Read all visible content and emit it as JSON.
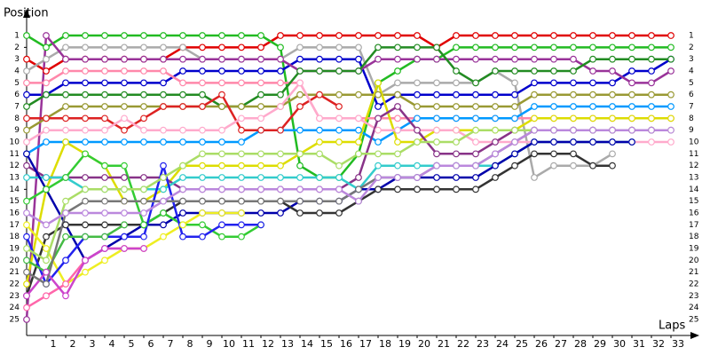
{
  "chart_data": {
    "type": "line",
    "y_label": "Position",
    "x_label": "Laps",
    "x": [
      0,
      1,
      2,
      3,
      4,
      5,
      6,
      7,
      8,
      9,
      10,
      11,
      12,
      13,
      14,
      15,
      16,
      17,
      18,
      19,
      20,
      21,
      22,
      23,
      24,
      25,
      26,
      27,
      28,
      29,
      30,
      31,
      32,
      33
    ],
    "xlim": [
      0,
      34
    ],
    "xticks": [
      1,
      2,
      3,
      4,
      5,
      6,
      7,
      8,
      9,
      10,
      11,
      12,
      13,
      14,
      15,
      16,
      17,
      18,
      19,
      20,
      21,
      22,
      23,
      24,
      25,
      26,
      27,
      28,
      29,
      30,
      31,
      32,
      33
    ],
    "ylim": [
      26,
      0
    ],
    "yticks": [
      1,
      2,
      3,
      4,
      5,
      6,
      7,
      8,
      9,
      10,
      11,
      12,
      13,
      14,
      15,
      16,
      17,
      18,
      19,
      20,
      21,
      22,
      23,
      24,
      25
    ],
    "series": [
      {
        "color": "#e00000",
        "values": [
          3,
          4,
          3,
          3,
          3,
          3,
          3,
          3,
          2,
          2,
          2,
          2,
          2,
          1,
          1,
          1,
          1,
          1,
          1,
          1,
          1,
          2,
          1,
          1,
          1,
          1,
          1,
          1,
          1,
          1,
          1,
          1,
          1,
          1
        ]
      },
      {
        "color": "#22bb22",
        "values": [
          1,
          2,
          1,
          1,
          1,
          1,
          1,
          1,
          1,
          1,
          1,
          1,
          1,
          2,
          12,
          13,
          13,
          11,
          5,
          4,
          3,
          3,
          2,
          2,
          2,
          2,
          2,
          2,
          2,
          2,
          2,
          2,
          2,
          2
        ]
      },
      {
        "color": "#aaaaaa",
        "values": [
          4,
          3,
          2,
          2,
          2,
          2,
          2,
          2,
          2,
          3,
          3,
          3,
          3,
          3,
          2,
          2,
          2,
          2,
          6,
          5,
          5,
          5,
          5,
          5,
          4,
          5,
          13,
          12,
          12,
          12,
          11,
          null,
          null,
          null
        ]
      },
      {
        "color": "#0000cc",
        "values": [
          6,
          6,
          5,
          5,
          5,
          5,
          5,
          5,
          4,
          4,
          4,
          4,
          4,
          4,
          3,
          3,
          3,
          3,
          7,
          6,
          6,
          6,
          6,
          6,
          6,
          6,
          5,
          5,
          5,
          5,
          5,
          4,
          4,
          3
        ]
      },
      {
        "color": "#993399",
        "values": [
          25,
          1,
          3,
          3,
          3,
          3,
          3,
          3,
          3,
          3,
          3,
          3,
          3,
          3,
          4,
          4,
          4,
          4,
          3,
          3,
          3,
          3,
          3,
          3,
          3,
          3,
          3,
          3,
          3,
          4,
          4,
          5,
          5,
          4
        ]
      },
      {
        "color": "#ff88aa",
        "values": [
          5,
          5,
          4,
          4,
          4,
          4,
          4,
          4,
          5,
          5,
          5,
          5,
          5,
          5,
          5,
          8,
          8,
          8,
          8,
          8,
          8,
          8,
          8,
          8,
          8,
          8,
          8,
          8,
          8,
          8,
          8,
          8,
          8,
          8
        ]
      },
      {
        "color": "#228b22",
        "values": [
          7,
          6,
          6,
          6,
          6,
          6,
          6,
          6,
          6,
          6,
          7,
          7,
          6,
          6,
          4,
          4,
          4,
          4,
          2,
          2,
          2,
          2,
          4,
          5,
          4,
          4,
          4,
          4,
          4,
          3,
          3,
          3,
          3,
          3
        ]
      },
      {
        "color": "#999933",
        "values": [
          9,
          8,
          7,
          7,
          7,
          7,
          7,
          7,
          7,
          7,
          7,
          7,
          7,
          7,
          6,
          6,
          6,
          6,
          6,
          6,
          7,
          7,
          7,
          7,
          7,
          7,
          6,
          6,
          6,
          6,
          6,
          6,
          6,
          6
        ]
      },
      {
        "color": "#0099ff",
        "values": [
          11,
          10,
          10,
          10,
          10,
          10,
          10,
          10,
          10,
          10,
          10,
          10,
          9,
          9,
          9,
          9,
          9,
          9,
          10,
          9,
          8,
          8,
          8,
          8,
          8,
          8,
          7,
          7,
          7,
          7,
          7,
          7,
          7,
          7
        ]
      },
      {
        "color": "#dddd00",
        "values": [
          22,
          14,
          10,
          11,
          12,
          15,
          15,
          14,
          12,
          12,
          12,
          12,
          12,
          12,
          11,
          10,
          10,
          10,
          5,
          10,
          10,
          9,
          9,
          9,
          9,
          9,
          8,
          8,
          8,
          8,
          8,
          8,
          8,
          8
        ]
      },
      {
        "color": "#dd2222",
        "values": [
          8,
          8,
          8,
          8,
          8,
          9,
          8,
          7,
          7,
          7,
          6,
          9,
          9,
          9,
          7,
          6,
          7,
          null,
          null,
          null,
          null,
          null,
          null,
          null,
          null,
          null,
          null,
          null,
          null,
          null,
          null,
          null,
          null,
          null
        ]
      },
      {
        "color": "#ffaacc",
        "values": [
          10,
          9,
          9,
          9,
          9,
          8,
          9,
          9,
          9,
          9,
          9,
          8,
          8,
          7,
          5,
          8,
          8,
          8,
          9,
          9,
          9,
          9,
          9,
          10,
          10,
          10,
          10,
          10,
          10,
          10,
          10,
          10,
          10,
          10
        ]
      },
      {
        "color": "#883388",
        "values": [
          12,
          13,
          13,
          13,
          13,
          13,
          13,
          13,
          14,
          14,
          14,
          14,
          14,
          14,
          14,
          14,
          14,
          13,
          8,
          7,
          9,
          11,
          11,
          11,
          10,
          9,
          9,
          9,
          9,
          9,
          9,
          9,
          9,
          null
        ]
      },
      {
        "color": "#33cccc",
        "values": [
          13,
          13,
          13,
          14,
          14,
          14,
          14,
          14,
          13,
          13,
          13,
          13,
          13,
          13,
          13,
          13,
          13,
          14,
          12,
          12,
          12,
          12,
          12,
          12,
          12,
          11,
          10,
          10,
          10,
          10,
          10,
          10,
          null,
          null
        ]
      },
      {
        "color": "#0000aa",
        "values": [
          11,
          14,
          17,
          20,
          19,
          18,
          17,
          17,
          16,
          16,
          16,
          16,
          16,
          16,
          15,
          15,
          15,
          14,
          14,
          13,
          13,
          13,
          13,
          13,
          12,
          11,
          10,
          10,
          10,
          10,
          10,
          10,
          null,
          null
        ]
      },
      {
        "color": "#333333",
        "values": [
          23,
          18,
          17,
          17,
          17,
          17,
          17,
          16,
          15,
          15,
          15,
          15,
          15,
          15,
          16,
          16,
          16,
          15,
          14,
          14,
          14,
          14,
          14,
          14,
          13,
          12,
          11,
          11,
          11,
          12,
          12,
          null,
          null,
          null
        ]
      },
      {
        "color": "#33cc33",
        "values": [
          15,
          14,
          13,
          11,
          12,
          12,
          17,
          16,
          17,
          17,
          18,
          18,
          17,
          null,
          null,
          null,
          null,
          null,
          null,
          null,
          null,
          null,
          null,
          null,
          null,
          null,
          null,
          null,
          null,
          null,
          null,
          null,
          null,
          null
        ]
      },
      {
        "color": "#eeee22",
        "values": [
          17,
          19,
          22,
          21,
          20,
          19,
          19,
          18,
          17,
          16,
          16,
          16,
          null,
          null,
          null,
          null,
          null,
          null,
          null,
          null,
          null,
          null,
          null,
          null,
          null,
          null,
          null,
          null,
          null,
          null,
          null,
          null,
          null,
          null
        ]
      },
      {
        "color": "#2222ee",
        "values": [
          18,
          22,
          20,
          18,
          18,
          18,
          18,
          12,
          18,
          18,
          17,
          17,
          17,
          null,
          null,
          null,
          null,
          null,
          null,
          null,
          null,
          null,
          null,
          null,
          null,
          null,
          null,
          null,
          null,
          null,
          null,
          null,
          null,
          null
        ]
      },
      {
        "color": "#ff66aa",
        "values": [
          24,
          23,
          22,
          20,
          19,
          19,
          19,
          null,
          null,
          null,
          null,
          null,
          null,
          null,
          null,
          null,
          null,
          null,
          null,
          null,
          null,
          null,
          null,
          null,
          null,
          null,
          null,
          null,
          null,
          null,
          null,
          null,
          null,
          null
        ]
      },
      {
        "color": "#aadd66",
        "values": [
          19,
          20,
          15,
          14,
          14,
          14,
          14,
          13,
          12,
          11,
          11,
          11,
          11,
          11,
          11,
          11,
          12,
          11,
          11,
          11,
          10,
          10,
          10,
          9,
          9,
          9,
          9,
          9,
          9,
          9,
          9,
          9,
          9,
          9
        ]
      },
      {
        "color": "#44bb44",
        "values": [
          20,
          21,
          18,
          18,
          18,
          17,
          null,
          null,
          null,
          null,
          null,
          null,
          null,
          null,
          null,
          null,
          null,
          null,
          null,
          null,
          null,
          null,
          null,
          null,
          null,
          null,
          null,
          null,
          null,
          null,
          null,
          null,
          null,
          null
        ]
      },
      {
        "color": "#cc44cc",
        "values": [
          23,
          21,
          23,
          20,
          19,
          19,
          19,
          null,
          null,
          null,
          null,
          null,
          null,
          null,
          null,
          null,
          null,
          null,
          null,
          null,
          null,
          null,
          null,
          null,
          null,
          null,
          null,
          null,
          null,
          null,
          null,
          null,
          null,
          null
        ]
      },
      {
        "color": "#777777",
        "values": [
          21,
          22,
          16,
          15,
          15,
          15,
          15,
          15,
          15,
          15,
          15,
          15,
          15,
          15,
          15,
          15,
          15,
          14,
          13,
          13,
          13,
          12,
          12,
          12,
          11,
          10,
          9,
          9,
          9,
          9,
          9,
          9,
          9,
          null
        ]
      },
      {
        "color": "#bb88dd",
        "values": [
          16,
          17,
          16,
          16,
          16,
          16,
          16,
          15,
          14,
          14,
          14,
          14,
          14,
          14,
          14,
          14,
          14,
          15,
          13,
          13,
          13,
          12,
          12,
          12,
          11,
          10,
          9,
          9,
          9,
          9,
          9,
          9,
          9,
          9
        ]
      }
    ]
  }
}
